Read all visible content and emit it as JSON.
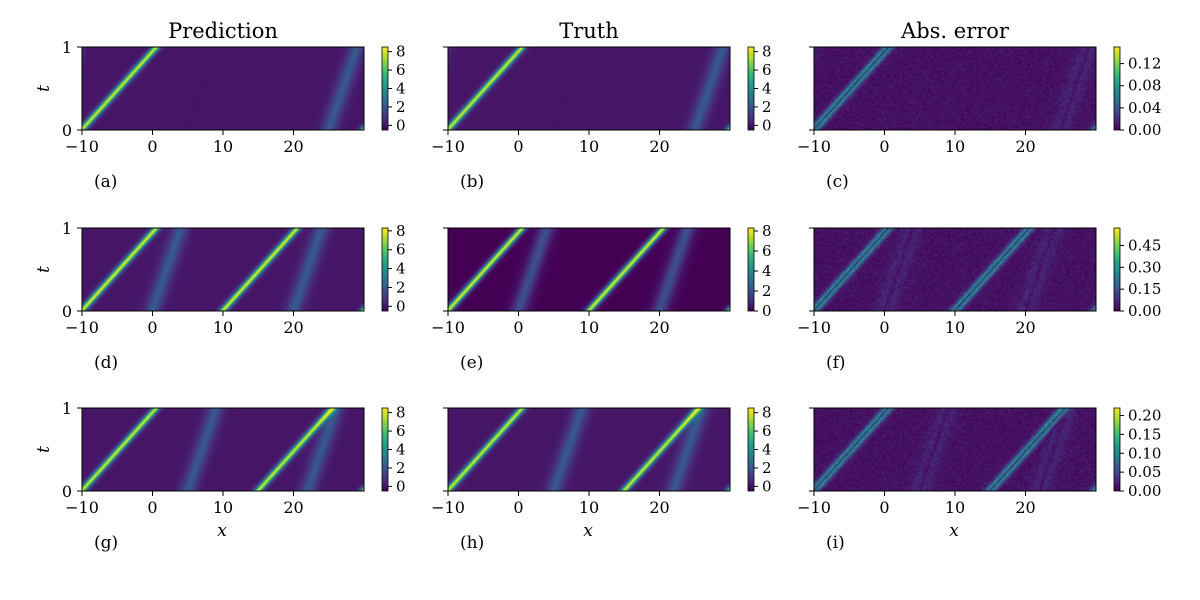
{
  "column_titles": [
    "Prediction",
    "Truth",
    "Abs. error"
  ],
  "axis_labels": {
    "x": "x",
    "t": "t"
  },
  "panel_labels": [
    "(a)",
    "(b)",
    "(c)",
    "(d)",
    "(e)",
    "(f)",
    "(g)",
    "(h)",
    "(i)"
  ],
  "colors": {
    "viridis": [
      "#440154",
      "#482878",
      "#3e4989",
      "#31688e",
      "#26828e",
      "#1f9e89",
      "#35b779",
      "#6ece58",
      "#b5de2b",
      "#fde725"
    ]
  },
  "chart_data": [
    {
      "type": "heatmap",
      "panel": "(a)",
      "title": "Prediction",
      "xlabel": "",
      "ylabel": "t",
      "xlim": [
        -10,
        30
      ],
      "ylim": [
        0,
        1
      ],
      "xticks": [
        "−10",
        "0",
        "10",
        "20"
      ],
      "yticks": [
        "0",
        "1"
      ],
      "colorbar": {
        "min": -0.5,
        "max": 8.5,
        "ticks": [
          "0",
          "2",
          "4",
          "6",
          "8"
        ],
        "tick_values": [
          0,
          2,
          4,
          6,
          8
        ]
      },
      "field": {
        "solitons": [
          {
            "x0": -10,
            "amp": 8,
            "speed": 10.5
          },
          {
            "x0": 25,
            "amp": 2,
            "speed": 4
          }
        ],
        "scale": 8
      }
    },
    {
      "type": "heatmap",
      "panel": "(b)",
      "title": "Truth",
      "xlabel": "",
      "ylabel": "",
      "xlim": [
        -10,
        30
      ],
      "ylim": [
        0,
        1
      ],
      "xticks": [
        "−10",
        "0",
        "10",
        "20"
      ],
      "yticks": [],
      "colorbar": {
        "min": -0.5,
        "max": 8.5,
        "ticks": [
          "0",
          "2",
          "4",
          "6",
          "8"
        ],
        "tick_values": [
          0,
          2,
          4,
          6,
          8
        ]
      },
      "field": {
        "solitons": [
          {
            "x0": -10,
            "amp": 8,
            "speed": 10.5
          },
          {
            "x0": 25,
            "amp": 2,
            "speed": 4
          }
        ],
        "scale": 8
      }
    },
    {
      "type": "heatmap",
      "panel": "(c)",
      "title": "Abs. error",
      "xlabel": "",
      "ylabel": "",
      "xlim": [
        -10,
        30
      ],
      "ylim": [
        0,
        1
      ],
      "xticks": [
        "−10",
        "0",
        "10",
        "20"
      ],
      "yticks": [],
      "colorbar": {
        "min": 0,
        "max": 0.15,
        "ticks": [
          "0.00",
          "0.04",
          "0.08",
          "0.12"
        ],
        "tick_values": [
          0,
          0.04,
          0.08,
          0.12
        ]
      },
      "field": {
        "solitons": [
          {
            "x0": -10,
            "amp": 8,
            "speed": 10.5
          },
          {
            "x0": 25,
            "amp": 2,
            "speed": 4
          }
        ],
        "scale": 0.15,
        "error": true
      }
    },
    {
      "type": "heatmap",
      "panel": "(d)",
      "title": "",
      "xlabel": "",
      "ylabel": "t",
      "xlim": [
        -10,
        30
      ],
      "ylim": [
        0,
        1
      ],
      "xticks": [
        "−10",
        "0",
        "10",
        "20"
      ],
      "yticks": [
        "0",
        "1"
      ],
      "colorbar": {
        "min": -0.5,
        "max": 8.3,
        "ticks": [
          "0",
          "2",
          "4",
          "6",
          "8"
        ],
        "tick_values": [
          0,
          2,
          4,
          6,
          8
        ]
      },
      "field": {
        "solitons": [
          {
            "x0": -10,
            "amp": 8,
            "speed": 10.5
          },
          {
            "x0": 0,
            "amp": 2,
            "speed": 4
          },
          {
            "x0": 10,
            "amp": 8,
            "speed": 10.5
          },
          {
            "x0": 20,
            "amp": 2,
            "speed": 4
          }
        ],
        "scale": 8
      }
    },
    {
      "type": "heatmap",
      "panel": "(e)",
      "title": "",
      "xlabel": "",
      "ylabel": "",
      "xlim": [
        -10,
        30
      ],
      "ylim": [
        0,
        1
      ],
      "xticks": [
        "−10",
        "0",
        "10",
        "20"
      ],
      "yticks": [],
      "colorbar": {
        "min": 0,
        "max": 8.3,
        "ticks": [
          "0",
          "2",
          "4",
          "6",
          "8"
        ],
        "tick_values": [
          0,
          2,
          4,
          6,
          8
        ]
      },
      "field": {
        "solitons": [
          {
            "x0": -10,
            "amp": 8,
            "speed": 10.5
          },
          {
            "x0": 0,
            "amp": 2,
            "speed": 4
          },
          {
            "x0": 10,
            "amp": 8,
            "speed": 10.5
          },
          {
            "x0": 20,
            "amp": 2,
            "speed": 4
          }
        ],
        "scale": 8
      }
    },
    {
      "type": "heatmap",
      "panel": "(f)",
      "title": "",
      "xlabel": "",
      "ylabel": "",
      "xlim": [
        -10,
        30
      ],
      "ylim": [
        0,
        1
      ],
      "xticks": [
        "−10",
        "0",
        "10",
        "20"
      ],
      "yticks": [],
      "colorbar": {
        "min": 0,
        "max": 0.57,
        "ticks": [
          "0.00",
          "0.15",
          "0.30",
          "0.45"
        ],
        "tick_values": [
          0,
          0.15,
          0.3,
          0.45
        ]
      },
      "field": {
        "solitons": [
          {
            "x0": -10,
            "amp": 8,
            "speed": 10.5
          },
          {
            "x0": 0,
            "amp": 2,
            "speed": 4
          },
          {
            "x0": 10,
            "amp": 8,
            "speed": 10.5
          },
          {
            "x0": 20,
            "amp": 2,
            "speed": 4
          }
        ],
        "scale": 0.57,
        "error": true
      }
    },
    {
      "type": "heatmap",
      "panel": "(g)",
      "title": "",
      "xlabel": "x",
      "ylabel": "t",
      "xlim": [
        -10,
        30
      ],
      "ylim": [
        0,
        1
      ],
      "xticks": [
        "−10",
        "0",
        "10",
        "20"
      ],
      "yticks": [
        "0",
        "1"
      ],
      "colorbar": {
        "min": -0.5,
        "max": 8.5,
        "ticks": [
          "0",
          "2",
          "4",
          "6",
          "8"
        ],
        "tick_values": [
          0,
          2,
          4,
          6,
          8
        ]
      },
      "field": {
        "solitons": [
          {
            "x0": -10,
            "amp": 8,
            "speed": 10.5
          },
          {
            "x0": 5,
            "amp": 2,
            "speed": 4
          },
          {
            "x0": 15,
            "amp": 8,
            "speed": 10.5
          },
          {
            "x0": 22,
            "amp": 2,
            "speed": 4
          }
        ],
        "scale": 8
      }
    },
    {
      "type": "heatmap",
      "panel": "(h)",
      "title": "",
      "xlabel": "x",
      "ylabel": "",
      "xlim": [
        -10,
        30
      ],
      "ylim": [
        0,
        1
      ],
      "xticks": [
        "−10",
        "0",
        "10",
        "20"
      ],
      "yticks": [],
      "colorbar": {
        "min": -0.5,
        "max": 8.5,
        "ticks": [
          "0",
          "2",
          "4",
          "6",
          "8"
        ],
        "tick_values": [
          0,
          2,
          4,
          6,
          8
        ]
      },
      "field": {
        "solitons": [
          {
            "x0": -10,
            "amp": 8,
            "speed": 10.5
          },
          {
            "x0": 5,
            "amp": 2,
            "speed": 4
          },
          {
            "x0": 15,
            "amp": 8,
            "speed": 10.5
          },
          {
            "x0": 22,
            "amp": 2,
            "speed": 4
          }
        ],
        "scale": 8
      }
    },
    {
      "type": "heatmap",
      "panel": "(i)",
      "title": "",
      "xlabel": "x",
      "ylabel": "",
      "xlim": [
        -10,
        30
      ],
      "ylim": [
        0,
        1
      ],
      "xticks": [
        "−10",
        "0",
        "10",
        "20"
      ],
      "yticks": [],
      "colorbar": {
        "min": 0,
        "max": 0.22,
        "ticks": [
          "0.00",
          "0.05",
          "0.10",
          "0.15",
          "0.20"
        ],
        "tick_values": [
          0,
          0.05,
          0.1,
          0.15,
          0.2
        ]
      },
      "field": {
        "solitons": [
          {
            "x0": -10,
            "amp": 8,
            "speed": 10.5
          },
          {
            "x0": 5,
            "amp": 2,
            "speed": 4
          },
          {
            "x0": 15,
            "amp": 8,
            "speed": 10.5
          },
          {
            "x0": 22,
            "amp": 2,
            "speed": 4
          }
        ],
        "scale": 0.22,
        "error": true
      }
    }
  ]
}
